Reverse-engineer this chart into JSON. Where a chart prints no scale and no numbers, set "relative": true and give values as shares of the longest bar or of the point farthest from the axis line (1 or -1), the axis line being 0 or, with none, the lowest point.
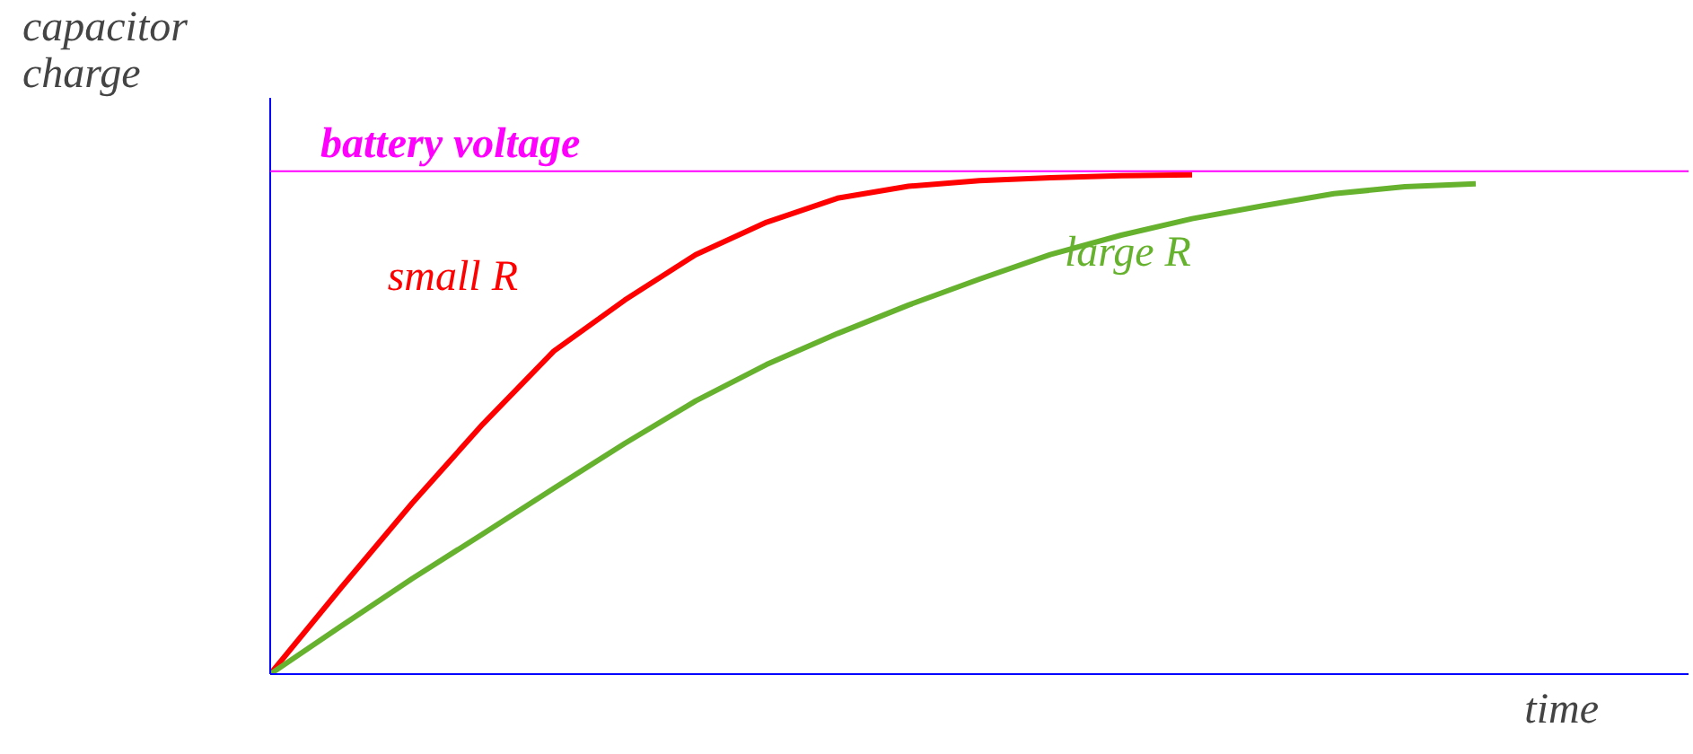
{
  "chart_data": {
    "type": "line",
    "relative": true,
    "xlabel": "time",
    "ylabel": "capacitor\ncharge",
    "line_style": "solid",
    "categories": [
      null,
      null,
      null,
      null,
      null,
      null,
      null,
      null,
      null,
      null,
      null,
      null,
      null,
      null,
      null,
      null,
      null,
      null,
      null,
      null,
      null
    ],
    "series": [
      {
        "name": "small R",
        "color": "#ff0000",
        "values": [
          0,
          0.173,
          0.342,
          0.501,
          0.647,
          0.749,
          0.84,
          0.905,
          0.953,
          0.977,
          0.988,
          0.994,
          0.998,
          1.0,
          null,
          null,
          null,
          null,
          null,
          null,
          null
        ]
      },
      {
        "name": "large R",
        "color": "#66b22e",
        "values": [
          0,
          0.096,
          0.191,
          0.281,
          0.372,
          0.462,
          0.547,
          0.62,
          0.682,
          0.739,
          0.791,
          0.84,
          0.879,
          0.912,
          0.938,
          0.962,
          0.976,
          0.982,
          null,
          null,
          null
        ]
      }
    ],
    "ref_lines": [
      {
        "axis": "y",
        "value": 1.007,
        "label": "battery voltage",
        "color": "#ff00ff"
      }
    ]
  }
}
